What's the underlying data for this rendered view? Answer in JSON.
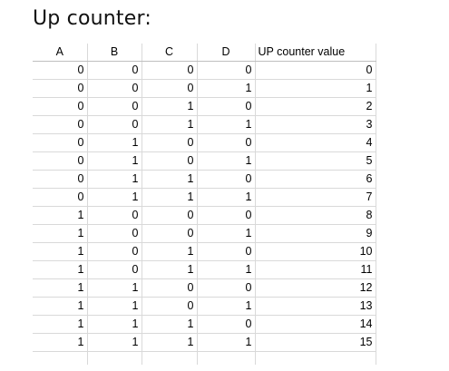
{
  "title": "Up counter:",
  "table": {
    "headers": [
      "A",
      "B",
      "C",
      "D",
      "UP counter value"
    ],
    "rows": [
      [
        "0",
        "0",
        "0",
        "0",
        "0"
      ],
      [
        "0",
        "0",
        "0",
        "1",
        "1"
      ],
      [
        "0",
        "0",
        "1",
        "0",
        "2"
      ],
      [
        "0",
        "0",
        "1",
        "1",
        "3"
      ],
      [
        "0",
        "1",
        "0",
        "0",
        "4"
      ],
      [
        "0",
        "1",
        "0",
        "1",
        "5"
      ],
      [
        "0",
        "1",
        "1",
        "0",
        "6"
      ],
      [
        "0",
        "1",
        "1",
        "1",
        "7"
      ],
      [
        "1",
        "0",
        "0",
        "0",
        "8"
      ],
      [
        "1",
        "0",
        "0",
        "1",
        "9"
      ],
      [
        "1",
        "0",
        "1",
        "0",
        "10"
      ],
      [
        "1",
        "0",
        "1",
        "1",
        "11"
      ],
      [
        "1",
        "1",
        "0",
        "0",
        "12"
      ],
      [
        "1",
        "1",
        "0",
        "1",
        "13"
      ],
      [
        "1",
        "1",
        "1",
        "0",
        "14"
      ],
      [
        "1",
        "1",
        "1",
        "1",
        "15"
      ]
    ]
  }
}
